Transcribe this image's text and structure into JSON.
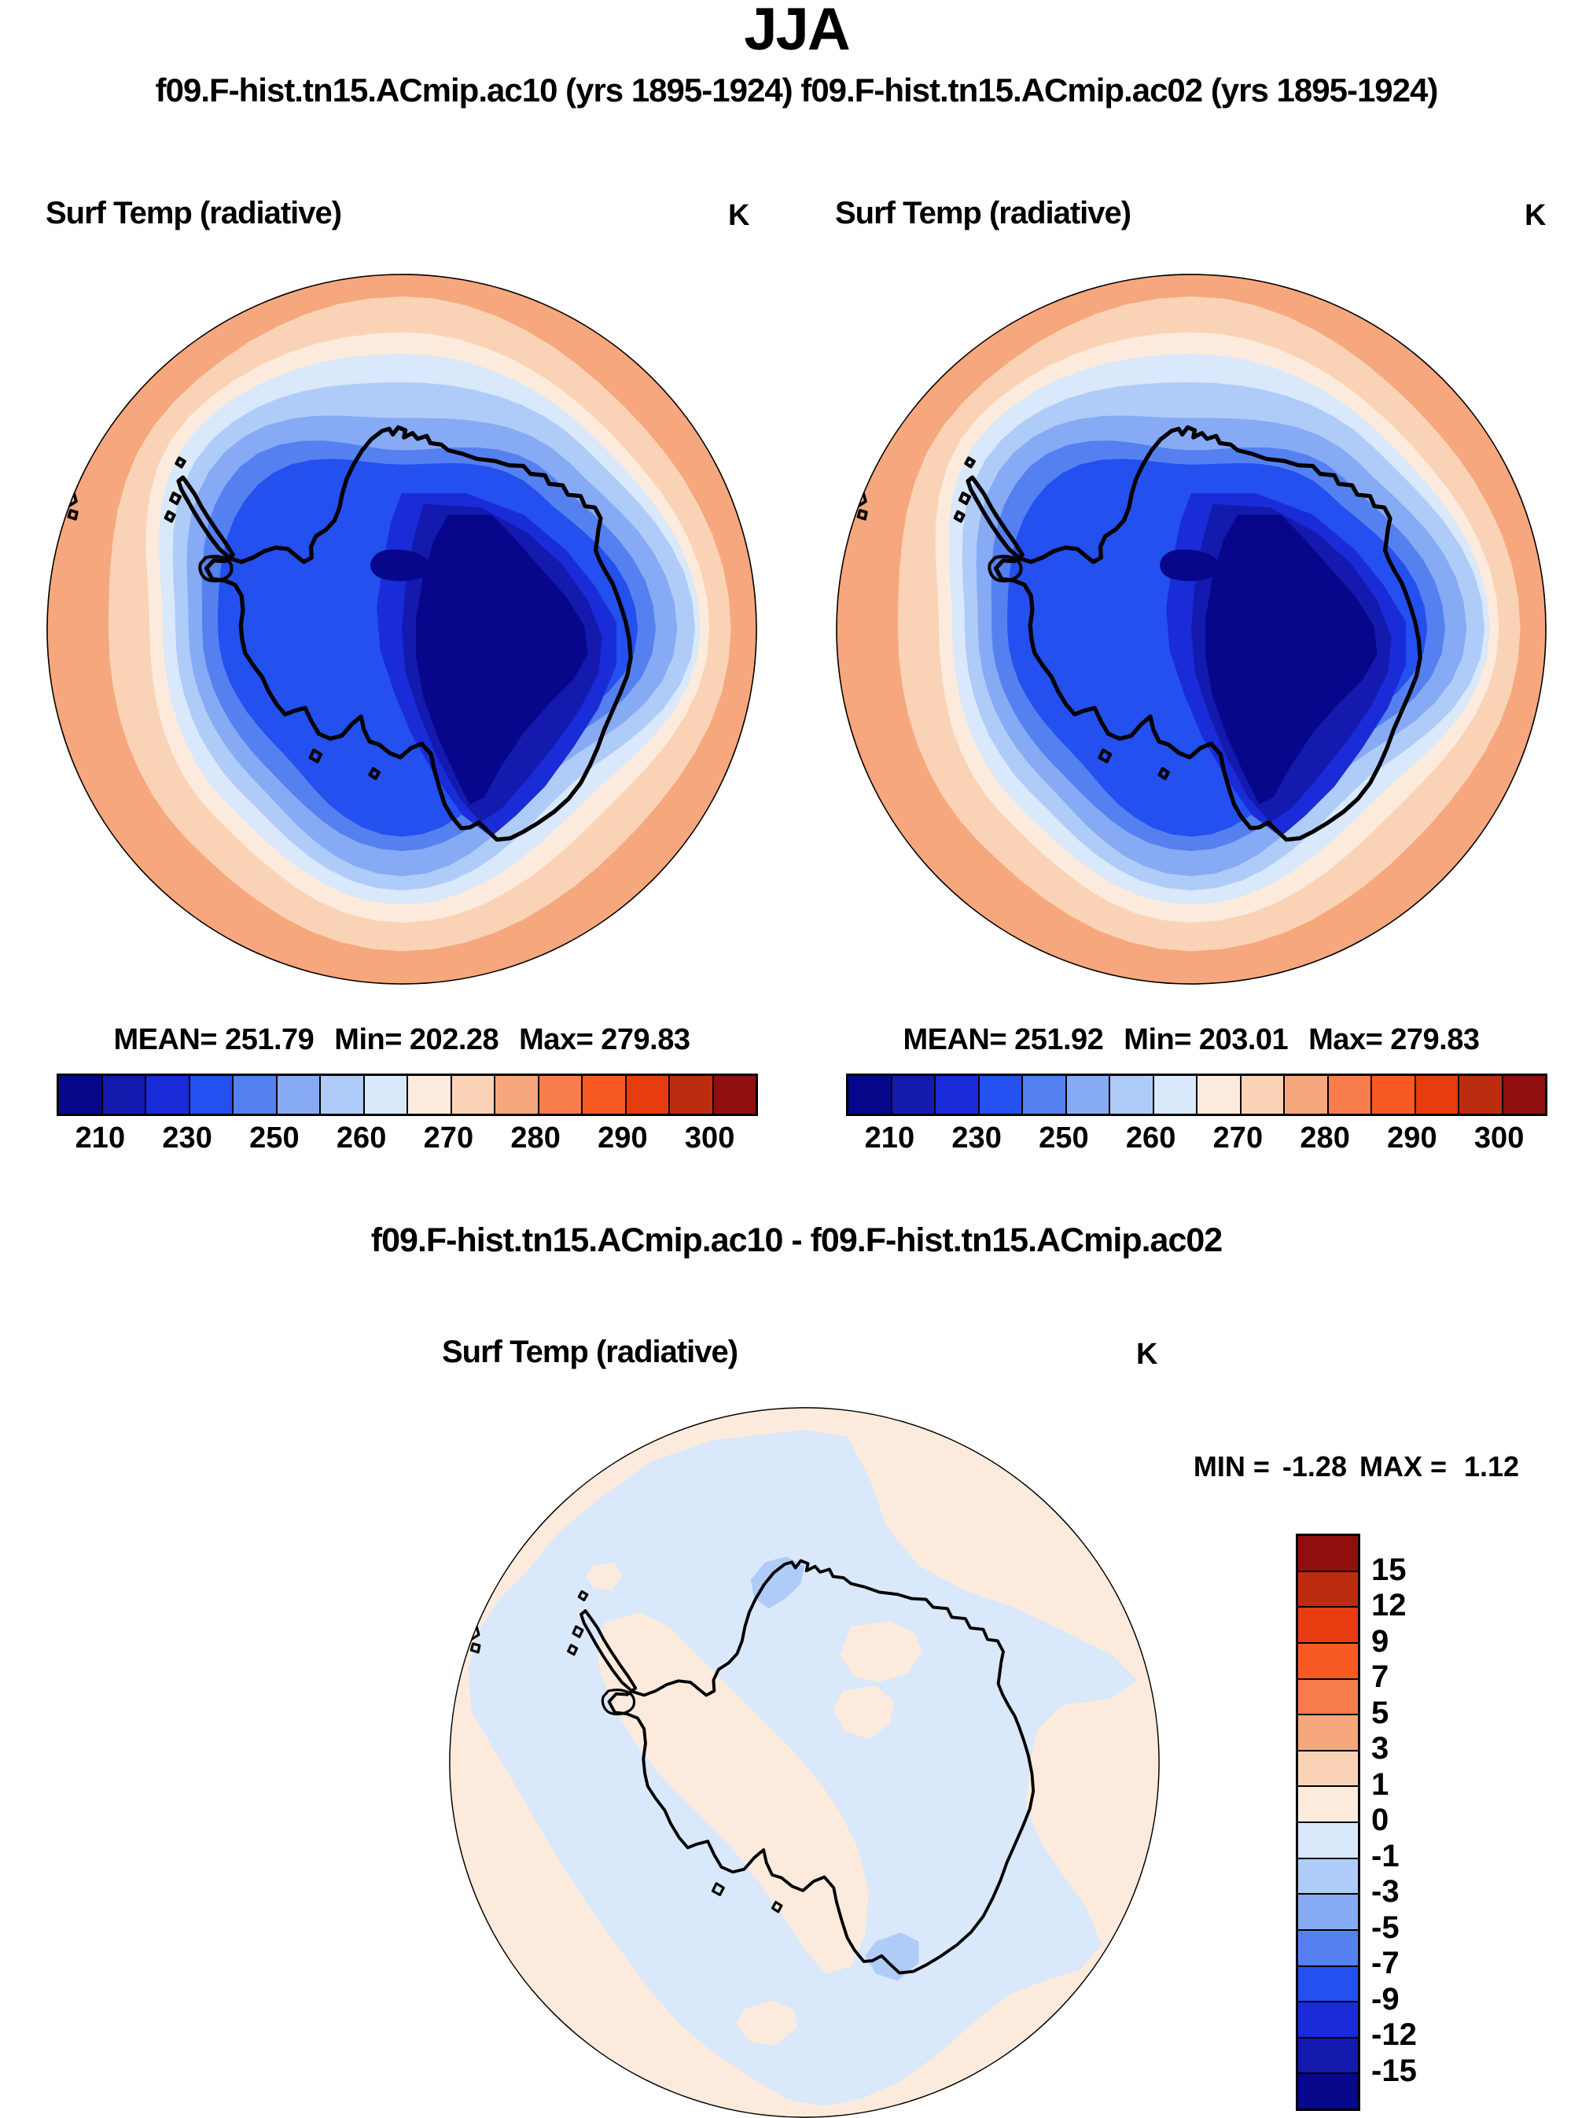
{
  "page_title": "JJA",
  "subtitle": "f09.F-hist.tn15.ACmip.ac10 (yrs 1895-1924) f09.F-hist.tn15.ACmip.ac02 (yrs 1895-1924)",
  "palette": {
    "comment": "16-class blue-to-red palette used by all colorbars",
    "colors": [
      "#07078C",
      "#141AAE",
      "#1A2BD8",
      "#2350EE",
      "#5580F0",
      "#86AAF4",
      "#AFCCF8",
      "#D9E8FA",
      "#FCEBDC",
      "#FAD3B6",
      "#F6A77D",
      "#F87C4C",
      "#F95A24",
      "#E63C10",
      "#BC2D10",
      "#8F0F0E"
    ]
  },
  "panels": [
    {
      "field_label": "Surf Temp (radiative)",
      "units": "K",
      "stats": {
        "mean_label": "MEAN=",
        "mean": "251.79",
        "min_label": "Min=",
        "min": "202.28",
        "max_label": "Max=",
        "max": "279.83"
      },
      "colorbar_ticks": [
        "210",
        "230",
        "250",
        "260",
        "270",
        "280",
        "290",
        "300"
      ]
    },
    {
      "field_label": "Surf Temp (radiative)",
      "units": "K",
      "stats": {
        "mean_label": "MEAN=",
        "mean": "251.92",
        "min_label": "Min=",
        "min": "203.01",
        "max_label": "Max=",
        "max": "279.83"
      },
      "colorbar_ticks": [
        "210",
        "230",
        "250",
        "260",
        "270",
        "280",
        "290",
        "300"
      ]
    }
  ],
  "difference_panel": {
    "title": "f09.F-hist.tn15.ACmip.ac10 - f09.F-hist.tn15.ACmip.ac02",
    "field_label": "Surf Temp (radiative)",
    "units": "K",
    "stats": {
      "min_label": "MIN =",
      "min": "-1.28",
      "max_label": "MAX =",
      "max": "1.12"
    },
    "colorbar_ticks": [
      "15",
      "12",
      "9",
      "7",
      "5",
      "3",
      "1",
      "0",
      "-1",
      "-3",
      "-5",
      "-7",
      "-9",
      "-12",
      "-15"
    ]
  },
  "chart_data": [
    {
      "type": "heatmap",
      "subtype": "filled-contour polar stereographic map",
      "title": "f09.F-hist.tn15.ACmip.ac10 (yrs 1895-1924)",
      "field": "Surf Temp (radiative)",
      "units": "K",
      "region": "Antarctica / Southern Ocean",
      "stats": {
        "mean": 251.79,
        "min": 202.28,
        "max": 279.83
      },
      "contour_levels": [
        210,
        220,
        230,
        240,
        250,
        255,
        260,
        265,
        270,
        275,
        280,
        285,
        290,
        295,
        300
      ],
      "colorbar_tick_labels": [
        210,
        230,
        250,
        260,
        270,
        280,
        290,
        300
      ],
      "legend_position": "bottom",
      "palette_direction": "dark blue (cold) at left to dark red (warm) at right",
      "pattern": "warm (~275-285 K) ocean ring at map edge, cooling inward; coldest region (<210 K) over East Antarctic plateau offset right of pole"
    },
    {
      "type": "heatmap",
      "subtype": "filled-contour polar stereographic map",
      "title": "f09.F-hist.tn15.ACmip.ac02 (yrs 1895-1924)",
      "field": "Surf Temp (radiative)",
      "units": "K",
      "region": "Antarctica / Southern Ocean",
      "stats": {
        "mean": 251.92,
        "min": 203.01,
        "max": 279.83
      },
      "contour_levels": [
        210,
        220,
        230,
        240,
        250,
        255,
        260,
        265,
        270,
        275,
        280,
        285,
        290,
        295,
        300
      ],
      "colorbar_tick_labels": [
        210,
        230,
        250,
        260,
        270,
        280,
        290,
        300
      ],
      "legend_position": "bottom",
      "palette_direction": "dark blue (cold) at left to dark red (warm) at right",
      "pattern": "visually near-identical to ac10 panel"
    },
    {
      "type": "heatmap",
      "subtype": "filled-contour polar stereographic difference map",
      "title": "f09.F-hist.tn15.ACmip.ac10 - f09.F-hist.tn15.ACmip.ac02",
      "field": "Surf Temp (radiative)",
      "units": "K",
      "stats": {
        "min": -1.28,
        "max": 1.12
      },
      "contour_levels": [
        -15,
        -12,
        -9,
        -7,
        -5,
        -3,
        -1,
        0,
        1,
        3,
        5,
        7,
        9,
        12,
        15
      ],
      "legend_position": "right vertical colorbar, red positive on top",
      "pattern": "differences within ±1 K: pale blue (0 to -1) over most of interior and mid-latitude band, pale cream (0 to +1) elsewhere; two small -1 to -3 patches at the coast near 0E and near Ross Sea"
    }
  ]
}
